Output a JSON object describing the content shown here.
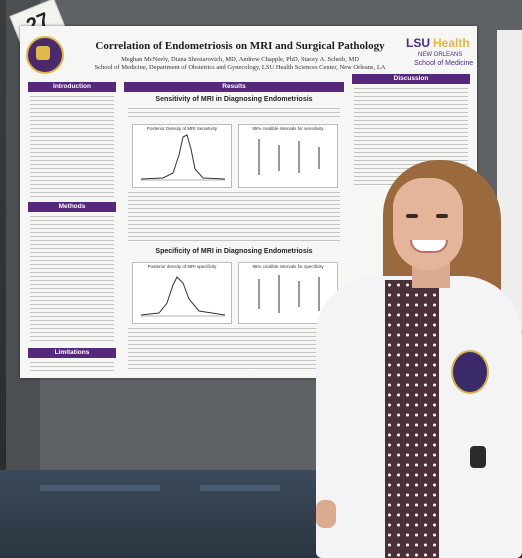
{
  "number_card": "27",
  "poster": {
    "title": "Correlation of Endometriosis on MRI and Surgical Pathology",
    "authors": "Meghan McNeely, Diana Shostarovich, MD, Andrew Chapple, PhD, Stacey A. Scheib, MD",
    "affiliation": "School of Medicine, Department of Obstetrics and Gynecology, LSU Health Sciences Center, New Orleans, LA",
    "logo": {
      "brand": "LSU",
      "brand2": "Health",
      "sub": "NEW ORLEANS",
      "school": "School of Medicine"
    },
    "sections": {
      "introduction": "Introduction",
      "methods": "Methods",
      "limitations": "Limitations",
      "results": "Results",
      "discussion": "Discussion"
    },
    "sens_title": "Sensitivity of MRI in Diagnosing Endometriosis",
    "spec_title": "Specificity of MRI in Diagnosing Endometriosis",
    "chart1_title": "Posterior Density of MRI Sensitivity",
    "chart2_title": "95% credible intervals for sensitivity",
    "chart3_title": "Posterior density of MRI specificity",
    "chart4_title": "95% credible intervals for specificity"
  },
  "colors": {
    "accent": "#56287a",
    "gold": "#e0b94a"
  }
}
